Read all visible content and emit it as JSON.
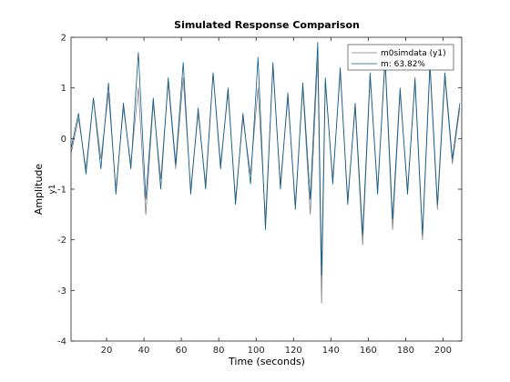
{
  "figure": {
    "ylabel_channel": "y1"
  },
  "chart_data": {
    "type": "line",
    "title": "Simulated Response Comparison",
    "xlabel": "Time (seconds)",
    "ylabel": "Amplitude",
    "xlim": [
      1,
      210
    ],
    "ylim": [
      -4,
      2
    ],
    "xticks": [
      20,
      40,
      60,
      80,
      100,
      120,
      140,
      160,
      180,
      200
    ],
    "yticks": [
      -4,
      -3,
      -2,
      -1,
      0,
      1,
      2
    ],
    "grid": false,
    "legend_position": "top-right",
    "series": [
      {
        "name": "m0simdata (y1)",
        "color": "#7f7f7f",
        "x": [
          1,
          5,
          9,
          13,
          17,
          21,
          25,
          29,
          33,
          37,
          41,
          45,
          49,
          53,
          57,
          61,
          65,
          69,
          73,
          77,
          81,
          85,
          89,
          93,
          97,
          101,
          105,
          109,
          113,
          117,
          121,
          125,
          129,
          133,
          135,
          137,
          141,
          145,
          149,
          153,
          157,
          161,
          165,
          169,
          173,
          177,
          181,
          185,
          189,
          193,
          197,
          201,
          205,
          209
        ],
        "values": [
          -0.3,
          0.4,
          -0.6,
          0.8,
          -0.4,
          0.9,
          -1.0,
          0.6,
          -0.5,
          1.0,
          -1.5,
          0.7,
          -0.8,
          1.1,
          -0.6,
          1.2,
          -1.0,
          0.5,
          -0.9,
          1.3,
          -0.5,
          0.9,
          -1.2,
          0.4,
          -0.7,
          1.0,
          -1.6,
          1.4,
          -0.9,
          0.8,
          -1.3,
          1.0,
          -1.5,
          1.6,
          -3.25,
          1.1,
          -0.8,
          1.3,
          -1.2,
          0.6,
          -2.1,
          1.2,
          -1.0,
          1.5,
          -1.8,
          0.9,
          -1.0,
          1.1,
          -2.0,
          1.4,
          -1.4,
          1.2,
          -0.5,
          0.6
        ]
      },
      {
        "name": "m: 63.82%",
        "color": "#0a5a8a",
        "x": [
          1,
          5,
          9,
          13,
          17,
          21,
          25,
          29,
          33,
          37,
          41,
          45,
          49,
          53,
          57,
          61,
          65,
          69,
          73,
          77,
          81,
          85,
          89,
          93,
          97,
          101,
          105,
          109,
          113,
          117,
          121,
          125,
          129,
          133,
          135,
          137,
          141,
          145,
          149,
          153,
          157,
          161,
          165,
          169,
          173,
          177,
          181,
          185,
          189,
          193,
          197,
          201,
          205,
          209
        ],
        "values": [
          -0.2,
          0.5,
          -0.7,
          0.8,
          -0.6,
          1.1,
          -1.1,
          0.7,
          -0.6,
          1.7,
          -1.2,
          0.8,
          -1.0,
          1.2,
          -0.5,
          1.5,
          -1.1,
          0.6,
          -1.0,
          1.3,
          -0.6,
          1.0,
          -1.3,
          0.5,
          -0.9,
          1.6,
          -1.8,
          1.5,
          -1.0,
          0.9,
          -1.4,
          1.1,
          -1.2,
          1.9,
          -2.7,
          1.2,
          -0.9,
          1.4,
          -1.3,
          0.7,
          -1.9,
          1.3,
          -1.1,
          1.6,
          -1.6,
          1.0,
          -1.1,
          1.2,
          -1.9,
          1.5,
          -1.3,
          1.3,
          -0.4,
          0.7
        ]
      }
    ]
  }
}
